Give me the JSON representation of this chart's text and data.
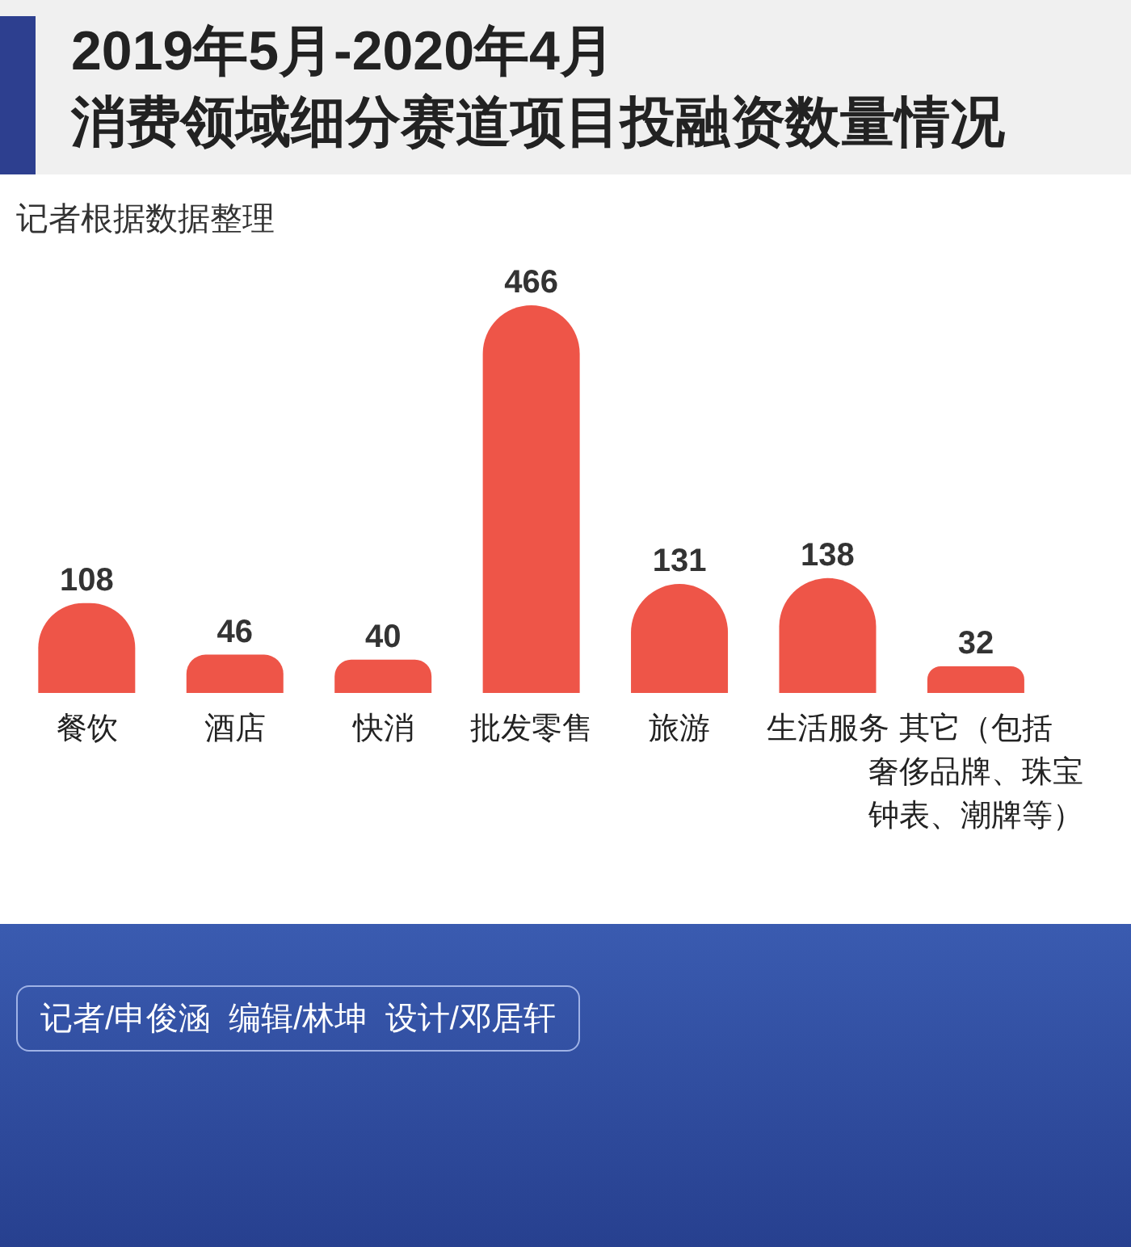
{
  "chart_data": {
    "type": "bar",
    "title": "2019年5月-2020年4月",
    "subtitle": "消费领域细分赛道项目投融资数量情况",
    "categories": [
      "餐饮",
      "酒店",
      "快消",
      "批发零售",
      "旅游",
      "生活服务",
      "其它（包括奢侈品牌、珠宝钟表、潮牌等）"
    ],
    "values": [
      108,
      46,
      40,
      466,
      131,
      138,
      32
    ],
    "color": "#ee5548",
    "data_labels": true,
    "annotations": [
      "记者根据数据整理",
      "记者/申俊涵  编辑/林坤  设计/邓居轩"
    ]
  }
}
